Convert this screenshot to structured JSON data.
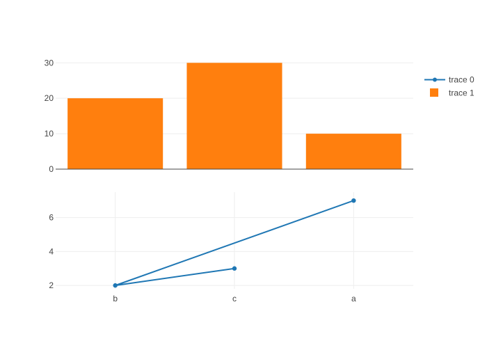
{
  "chart_data": [
    {
      "type": "bar",
      "name": "top-subplot",
      "categories": [
        "b",
        "c",
        "a"
      ],
      "series": [
        {
          "name": "trace 1",
          "values": [
            20,
            30,
            10
          ]
        }
      ],
      "y_ticks": [
        "0",
        "10",
        "20",
        "30"
      ],
      "ylim": [
        0,
        33
      ],
      "grid": true,
      "shares_x_with": "bottom-subplot"
    },
    {
      "type": "line",
      "name": "bottom-subplot",
      "categories": [
        "b",
        "c",
        "a"
      ],
      "series": [
        {
          "name": "trace 0",
          "x": [
            "c",
            "b",
            "a"
          ],
          "y": [
            3,
            2,
            7
          ],
          "mode": "lines+markers"
        }
      ],
      "x_ticks": [
        "b",
        "c",
        "a"
      ],
      "y_ticks": [
        "2",
        "4",
        "6"
      ],
      "ylim": [
        1.8,
        7.5
      ],
      "grid": true
    }
  ],
  "legend": {
    "placement": "top-right",
    "entries": [
      {
        "label": "trace 0",
        "symbol": "line-marker"
      },
      {
        "label": "trace 1",
        "symbol": "square"
      }
    ]
  },
  "colors": {
    "trace0": "#1f77b4",
    "trace1": "#ff7f0e",
    "grid": "#eeeeee",
    "axis": "#444444"
  }
}
